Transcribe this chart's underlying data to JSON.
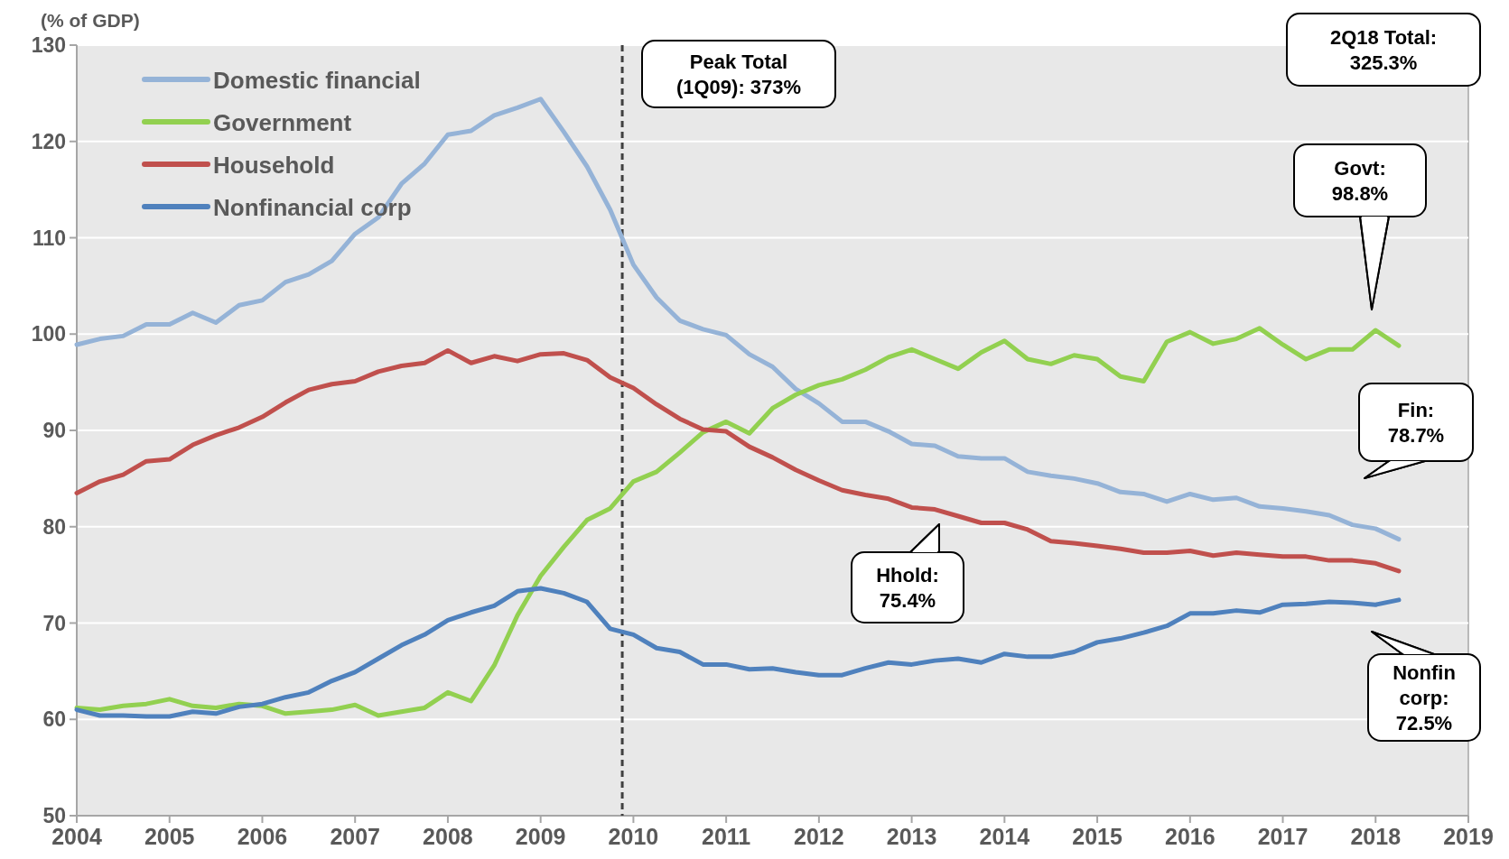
{
  "chart_data": {
    "type": "line",
    "ylabel": "(% of GDP)",
    "x": [
      2004,
      2004.25,
      2004.5,
      2004.75,
      2005,
      2005.25,
      2005.5,
      2005.75,
      2006,
      2006.25,
      2006.5,
      2006.75,
      2007,
      2007.25,
      2007.5,
      2007.75,
      2008,
      2008.25,
      2008.5,
      2008.75,
      2009,
      2009.25,
      2009.5,
      2009.75,
      2010,
      2010.25,
      2010.5,
      2010.75,
      2011,
      2011.25,
      2011.5,
      2011.75,
      2012,
      2012.25,
      2012.5,
      2012.75,
      2013,
      2013.25,
      2013.5,
      2013.75,
      2014,
      2014.25,
      2014.5,
      2014.75,
      2015,
      2015.25,
      2015.5,
      2015.75,
      2016,
      2016.25,
      2016.5,
      2016.75,
      2017,
      2017.25,
      2017.5,
      2017.75,
      2018,
      2018.25
    ],
    "series": [
      {
        "name": "Domestic financial",
        "color": "#95b3d7",
        "values": [
          98.9,
          99.5,
          99.8,
          101.0,
          101.0,
          102.2,
          101.2,
          103.0,
          103.5,
          105.4,
          106.2,
          107.6,
          110.4,
          112.1,
          115.6,
          117.7,
          120.7,
          121.1,
          122.7,
          123.5,
          124.4,
          121.0,
          117.4,
          112.9,
          107.2,
          103.8,
          101.4,
          100.5,
          99.9,
          97.9,
          96.6,
          94.3,
          92.8,
          90.9,
          90.9,
          89.9,
          88.6,
          88.4,
          87.3,
          87.1,
          87.1,
          85.7,
          85.3,
          85.0,
          84.5,
          83.6,
          83.4,
          82.6,
          83.4,
          82.8,
          83.0,
          82.1,
          81.9,
          81.6,
          81.2,
          80.2,
          79.8,
          78.7
        ]
      },
      {
        "name": "Government",
        "color": "#92d050",
        "values": [
          61.2,
          61.0,
          61.4,
          61.6,
          62.1,
          61.4,
          61.2,
          61.6,
          61.4,
          60.6,
          60.8,
          61.0,
          61.5,
          60.4,
          60.8,
          61.2,
          62.8,
          61.9,
          65.6,
          70.8,
          74.9,
          77.9,
          80.7,
          81.9,
          84.7,
          85.7,
          87.7,
          89.8,
          90.9,
          89.7,
          92.3,
          93.7,
          94.7,
          95.3,
          96.3,
          97.6,
          98.4,
          97.4,
          96.4,
          98.1,
          99.3,
          97.4,
          96.9,
          97.8,
          97.4,
          95.6,
          95.1,
          99.2,
          100.2,
          99.0,
          99.5,
          100.6,
          98.9,
          97.4,
          98.4,
          98.4,
          100.4,
          98.8
        ]
      },
      {
        "name": "Household",
        "color": "#c0504d",
        "values": [
          83.5,
          84.7,
          85.4,
          86.8,
          87.0,
          88.5,
          89.5,
          90.3,
          91.4,
          92.9,
          94.2,
          94.8,
          95.1,
          96.1,
          96.7,
          97.0,
          98.3,
          97.0,
          97.7,
          97.2,
          97.9,
          98.0,
          97.3,
          95.5,
          94.4,
          92.7,
          91.2,
          90.1,
          89.9,
          88.3,
          87.2,
          85.9,
          84.8,
          83.8,
          83.3,
          82.9,
          82.0,
          81.8,
          81.1,
          80.4,
          80.4,
          79.7,
          78.5,
          78.3,
          78.0,
          77.7,
          77.3,
          77.3,
          77.5,
          77.0,
          77.3,
          77.1,
          76.9,
          76.9,
          76.5,
          76.5,
          76.2,
          75.4
        ]
      },
      {
        "name": "Nonfinancial corp",
        "color": "#4f81bd",
        "values": [
          61.0,
          60.4,
          60.4,
          60.3,
          60.3,
          60.8,
          60.6,
          61.3,
          61.6,
          62.3,
          62.8,
          64.0,
          64.9,
          66.3,
          67.7,
          68.8,
          70.3,
          71.1,
          71.8,
          73.3,
          73.6,
          73.1,
          72.2,
          69.4,
          68.8,
          67.4,
          67.0,
          65.7,
          65.7,
          65.2,
          65.3,
          64.9,
          64.6,
          64.6,
          65.3,
          65.9,
          65.7,
          66.1,
          66.3,
          65.9,
          66.8,
          66.5,
          66.5,
          67.0,
          68.0,
          68.4,
          69.0,
          69.7,
          71.0,
          71.0,
          71.3,
          71.1,
          71.9,
          72.0,
          72.2,
          72.1,
          71.9,
          72.4
        ]
      }
    ],
    "xlim": [
      2004,
      2019
    ],
    "xticks": [
      2004,
      2005,
      2006,
      2007,
      2008,
      2009,
      2010,
      2011,
      2012,
      2013,
      2014,
      2015,
      2016,
      2017,
      2018,
      2019
    ],
    "ylim": [
      50,
      130
    ],
    "yticks": [
      50,
      60,
      70,
      80,
      90,
      100,
      110,
      120,
      130
    ],
    "grid": "y",
    "legend": "top left",
    "line_style": "solid",
    "marker": "none",
    "ref_lines": [
      {
        "axis": "x",
        "value": 2009.88,
        "color": "#404040",
        "line_style": "dashed"
      }
    ],
    "annotations": [
      "Peak Total\n(1Q09): 373%",
      "2Q18 Total:\n325.3%",
      "Govt:\n98.8%",
      "Fin:\n78.7%",
      "Hhold:\n75.4%",
      "Nonfin\ncorp:\n72.5%"
    ]
  }
}
